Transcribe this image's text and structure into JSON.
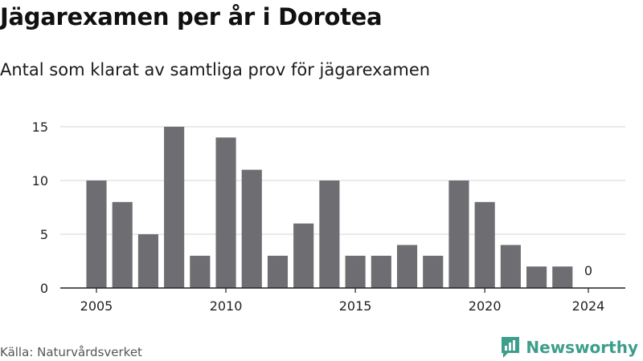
{
  "title": "Jägarexamen per år i Dorotea",
  "subtitle": "Antal som klarat av samtliga prov för jägarexamen",
  "source": "Källa: Naturvårdsverket",
  "brand": {
    "name": "Newsworthy",
    "icon": "newsworthy-logo-icon",
    "color": "#3d9e8c"
  },
  "colors": {
    "bar": "#6e6d72",
    "grid": "#dddddd",
    "axis": "#222222"
  },
  "chart_data": {
    "type": "bar",
    "x": [
      2005,
      2006,
      2007,
      2008,
      2009,
      2010,
      2011,
      2012,
      2013,
      2014,
      2015,
      2016,
      2017,
      2018,
      2019,
      2020,
      2021,
      2022,
      2023,
      2024
    ],
    "values": [
      10,
      8,
      5,
      15,
      3,
      14,
      11,
      3,
      6,
      10,
      3,
      3,
      4,
      3,
      10,
      8,
      4,
      2,
      2,
      0
    ],
    "xticks": [
      2005,
      2010,
      2015,
      2020,
      2024
    ],
    "yticks": [
      0,
      5,
      10,
      15
    ],
    "ylim": [
      0,
      15
    ],
    "data_labels": [
      {
        "x": 2024,
        "label": "0"
      }
    ],
    "grid": true,
    "xlabel": "",
    "ylabel": ""
  }
}
